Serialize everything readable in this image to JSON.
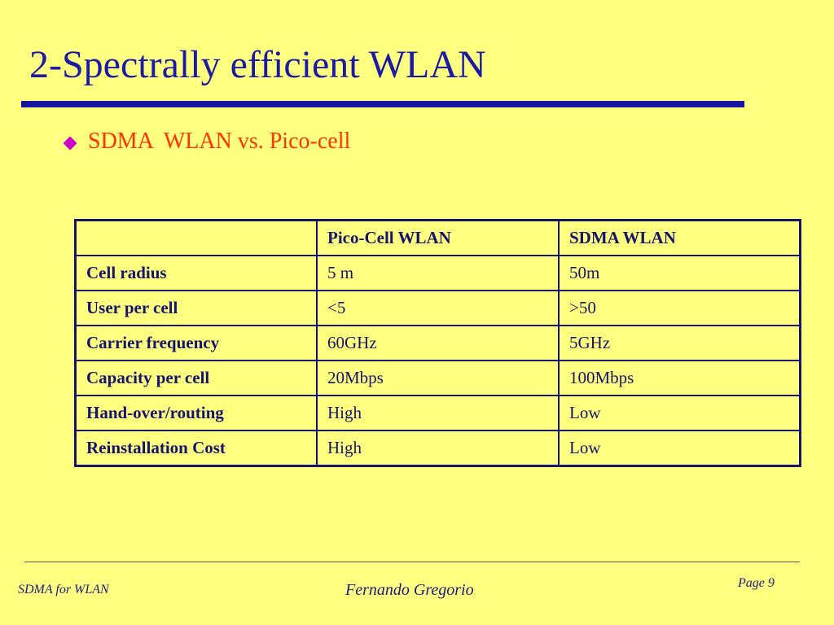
{
  "slide": {
    "title": "2-Spectrally efficient WLAN",
    "bullet": "SDMA  WLAN vs. Pico-cell"
  },
  "table": {
    "header": [
      "",
      "Pico-Cell WLAN",
      "SDMA WLAN"
    ],
    "rows": [
      [
        "Cell radius",
        "5 m",
        "50m"
      ],
      [
        "User per cell",
        "<5",
        ">50"
      ],
      [
        "Carrier frequency",
        "60GHz",
        "5GHz"
      ],
      [
        "Capacity per cell",
        "20Mbps",
        "100Mbps"
      ],
      [
        "Hand-over/routing",
        "High",
        "Low"
      ],
      [
        "Reinstallation Cost",
        "High",
        "Low"
      ]
    ]
  },
  "footer": {
    "left": "SDMA for WLAN",
    "center": "Fernando Gregorio",
    "right": "Page 9"
  },
  "colors": {
    "background": "#ffff80",
    "title": "#1a1aa6",
    "bullet_text": "#ff3300",
    "bullet_icon": "#cc00cc",
    "table_text": "#14146e"
  }
}
